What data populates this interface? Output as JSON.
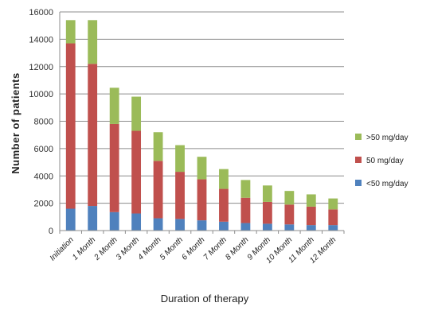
{
  "chart_data": {
    "type": "bar",
    "stacked": true,
    "categories": [
      "Initiation",
      "1 Month",
      "2 Month",
      "3 Month",
      "4 Month",
      "5 Month",
      "6 Month",
      "7 Month",
      "8 Month",
      "9 Month",
      "10 Month",
      "11 Month",
      "12 Month"
    ],
    "series": [
      {
        "name": "<50 mg/day",
        "color": "#4f81bd",
        "values": [
          1600,
          1800,
          1350,
          1250,
          900,
          850,
          750,
          650,
          550,
          500,
          450,
          400,
          400
        ]
      },
      {
        "name": "50 mg/day",
        "color": "#c0504d",
        "values": [
          12100,
          10400,
          6450,
          6050,
          4200,
          3450,
          3000,
          2400,
          1850,
          1600,
          1450,
          1350,
          1150
        ]
      },
      {
        "name": ">50 mg/day",
        "color": "#9bbb59",
        "values": [
          1700,
          3200,
          2650,
          2500,
          2100,
          1950,
          1650,
          1450,
          1300,
          1200,
          1000,
          900,
          800
        ]
      }
    ],
    "legend_order": [
      ">50 mg/day",
      "50 mg/day",
      "<50 mg/day"
    ],
    "legend_position": "right",
    "xlabel": "Duration of therapy",
    "ylabel": "Number of patients",
    "ylim": [
      0,
      16000
    ],
    "yticks": [
      0,
      2000,
      4000,
      6000,
      8000,
      10000,
      12000,
      14000,
      16000
    ],
    "grid": true
  }
}
